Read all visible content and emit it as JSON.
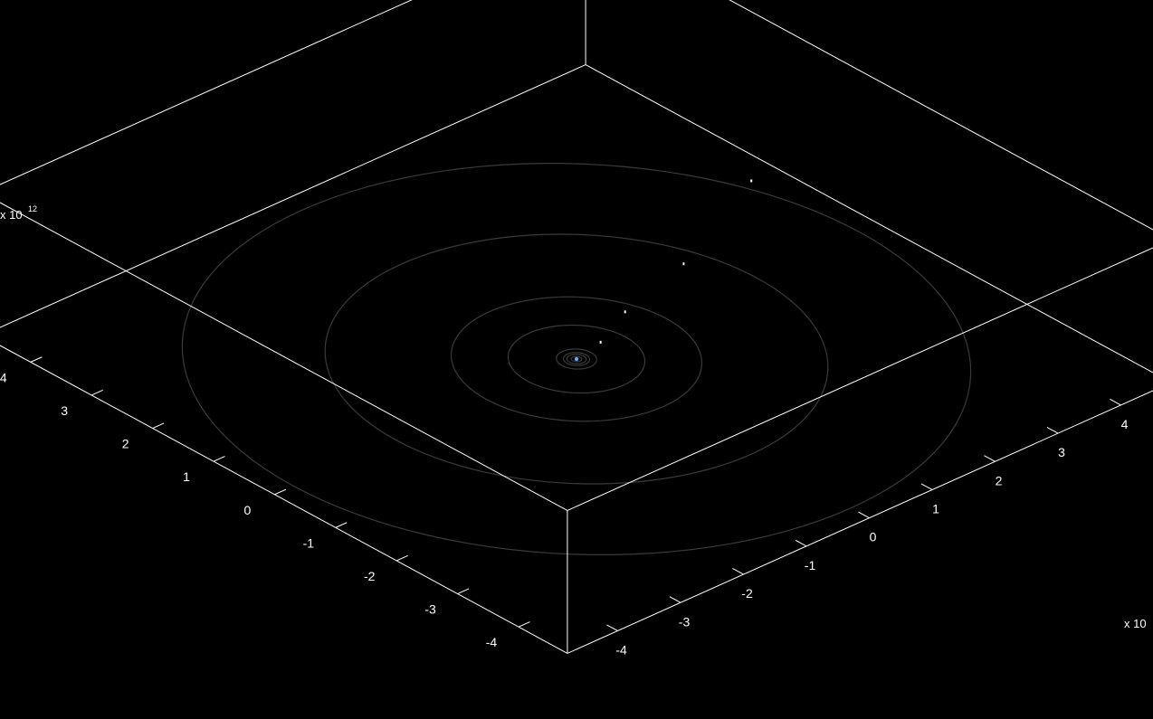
{
  "chart_data": {
    "type": "scatter",
    "projection": "3d-isometric",
    "grid": false,
    "background_color": "#000000",
    "axis_color": "#ffffff",
    "orbit_color": "#3a3a3a",
    "sun_color": "#4fb3ff",
    "planet_color": "#ffffff",
    "x_axis": {
      "ticks": [
        -4,
        -3,
        -2,
        -1,
        0,
        1,
        2,
        3,
        4
      ],
      "tick_labels": [
        "-4",
        "-3",
        "-2",
        "-1",
        "0",
        "1",
        "2",
        "3",
        "4"
      ],
      "exponent_label": "x 10",
      "range": [
        -4.8,
        4.8
      ]
    },
    "y_axis": {
      "ticks": [
        -4,
        -3,
        -2,
        -1,
        0,
        1,
        2,
        3,
        4
      ],
      "tick_labels": [
        "-4",
        "-3",
        "-2",
        "-1",
        "0",
        "1",
        "2",
        "3",
        "4"
      ],
      "range": [
        -4.8,
        4.8
      ]
    },
    "z_axis": {
      "exponent_label": "x 10",
      "exponent_power": "12"
    },
    "orbits": [
      {
        "radius": 0.06
      },
      {
        "radius": 0.11
      },
      {
        "radius": 0.15
      },
      {
        "radius": 0.23
      },
      {
        "radius": 0.78
      },
      {
        "radius": 1.43
      },
      {
        "radius": 2.87
      },
      {
        "radius": 4.5
      }
    ],
    "bodies": [
      {
        "name": "sun",
        "x": 0,
        "y": 0
      },
      {
        "x": 0.48,
        "y": 0.1
      },
      {
        "x": 1.18,
        "y": 0.42
      },
      {
        "x": 2.46,
        "y": 0.78
      },
      {
        "x": 4.38,
        "y": 1.65
      }
    ]
  }
}
